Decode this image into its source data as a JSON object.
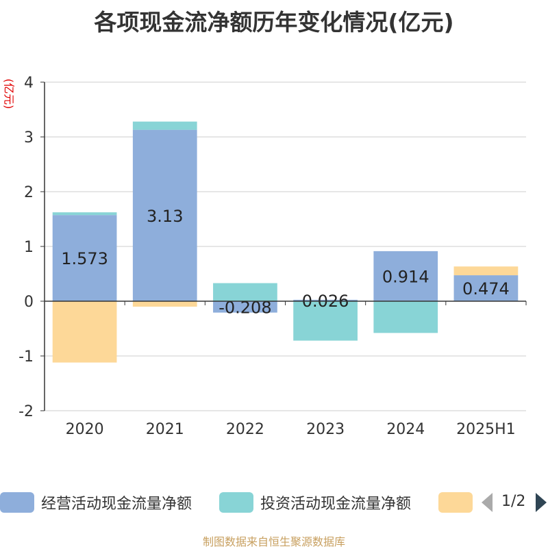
{
  "title": "各项现金流净额历年变化情况(亿元)",
  "unit_label": "(亿元)",
  "source": "制图数据来自恒生聚源数据库",
  "pager": "1/2",
  "chart_data": {
    "type": "bar",
    "stacked": true,
    "categories": [
      "2020",
      "2021",
      "2022",
      "2023",
      "2024",
      "2025H1"
    ],
    "ylim": [
      -2,
      4
    ],
    "yticks": [
      -2,
      -1,
      0,
      1,
      2,
      3,
      4
    ],
    "grid": true,
    "legend_position": "bottom",
    "series": [
      {
        "name": "经营活动现金流量净额",
        "color": "#8eaedb",
        "values": [
          1.573,
          3.13,
          -0.208,
          0.026,
          0.914,
          0.474
        ],
        "labels": [
          "1.573",
          "3.13",
          "-0.208",
          "0.026",
          "0.914",
          "0.474"
        ]
      },
      {
        "name": "投资活动现金流量净额",
        "color": "#88d4d6",
        "values": [
          0.05,
          0.15,
          0.33,
          -0.72,
          -0.58,
          0.0
        ]
      },
      {
        "name": "",
        "color": "#fdd898",
        "values": [
          -1.12,
          -0.1,
          0.0,
          0.0,
          0.0,
          0.16
        ]
      }
    ]
  }
}
